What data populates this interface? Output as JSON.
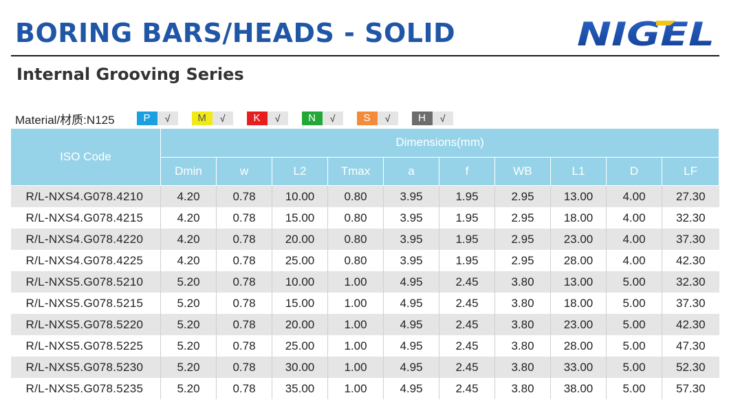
{
  "header": {
    "title": "BORING BARS/HEADS - SOLID",
    "subtitle": "Internal Grooving Series",
    "logo_text": "NIGEL",
    "colors": {
      "title": "#1f56a6",
      "logo": "#1a4ea8",
      "header_bg": "#97d3e8"
    }
  },
  "material": {
    "label": "Material/材质:",
    "grade": "N125",
    "badges": [
      {
        "code": "P",
        "check": "√",
        "color": "#1a9fe0"
      },
      {
        "code": "M",
        "check": "√",
        "color": "#f2ea16"
      },
      {
        "code": "K",
        "check": "√",
        "color": "#e61e1e"
      },
      {
        "code": "N",
        "check": "√",
        "color": "#23a838"
      },
      {
        "code": "S",
        "check": "√",
        "color": "#f38b3c"
      },
      {
        "code": "H",
        "check": "√",
        "color": "#6d6d6d"
      }
    ]
  },
  "table": {
    "iso_header": "ISO Code",
    "dim_header": "Dimensions(mm)",
    "columns": [
      "Dmin",
      "w",
      "L2",
      "Tmax",
      "a",
      "f",
      "WB",
      "L1",
      "D",
      "LF"
    ],
    "rows": [
      [
        "R/L-NXS4.G078.4210",
        "4.20",
        "0.78",
        "10.00",
        "0.80",
        "3.95",
        "1.95",
        "2.95",
        "13.00",
        "4.00",
        "27.30"
      ],
      [
        "R/L-NXS4.G078.4215",
        "4.20",
        "0.78",
        "15.00",
        "0.80",
        "3.95",
        "1.95",
        "2.95",
        "18.00",
        "4.00",
        "32.30"
      ],
      [
        "R/L-NXS4.G078.4220",
        "4.20",
        "0.78",
        "20.00",
        "0.80",
        "3.95",
        "1.95",
        "2.95",
        "23.00",
        "4.00",
        "37.30"
      ],
      [
        "R/L-NXS4.G078.4225",
        "4.20",
        "0.78",
        "25.00",
        "0.80",
        "3.95",
        "1.95",
        "2.95",
        "28.00",
        "4.00",
        "42.30"
      ],
      [
        "R/L-NXS5.G078.5210",
        "5.20",
        "0.78",
        "10.00",
        "1.00",
        "4.95",
        "2.45",
        "3.80",
        "13.00",
        "5.00",
        "32.30"
      ],
      [
        "R/L-NXS5.G078.5215",
        "5.20",
        "0.78",
        "15.00",
        "1.00",
        "4.95",
        "2.45",
        "3.80",
        "18.00",
        "5.00",
        "37.30"
      ],
      [
        "R/L-NXS5.G078.5220",
        "5.20",
        "0.78",
        "20.00",
        "1.00",
        "4.95",
        "2.45",
        "3.80",
        "23.00",
        "5.00",
        "42.30"
      ],
      [
        "R/L-NXS5.G078.5225",
        "5.20",
        "0.78",
        "25.00",
        "1.00",
        "4.95",
        "2.45",
        "3.80",
        "28.00",
        "5.00",
        "47.30"
      ],
      [
        "R/L-NXS5.G078.5230",
        "5.20",
        "0.78",
        "30.00",
        "1.00",
        "4.95",
        "2.45",
        "3.80",
        "33.00",
        "5.00",
        "52.30"
      ],
      [
        "R/L-NXS5.G078.5235",
        "5.20",
        "0.78",
        "35.00",
        "1.00",
        "4.95",
        "2.45",
        "3.80",
        "38.00",
        "5.00",
        "57.30"
      ]
    ]
  }
}
